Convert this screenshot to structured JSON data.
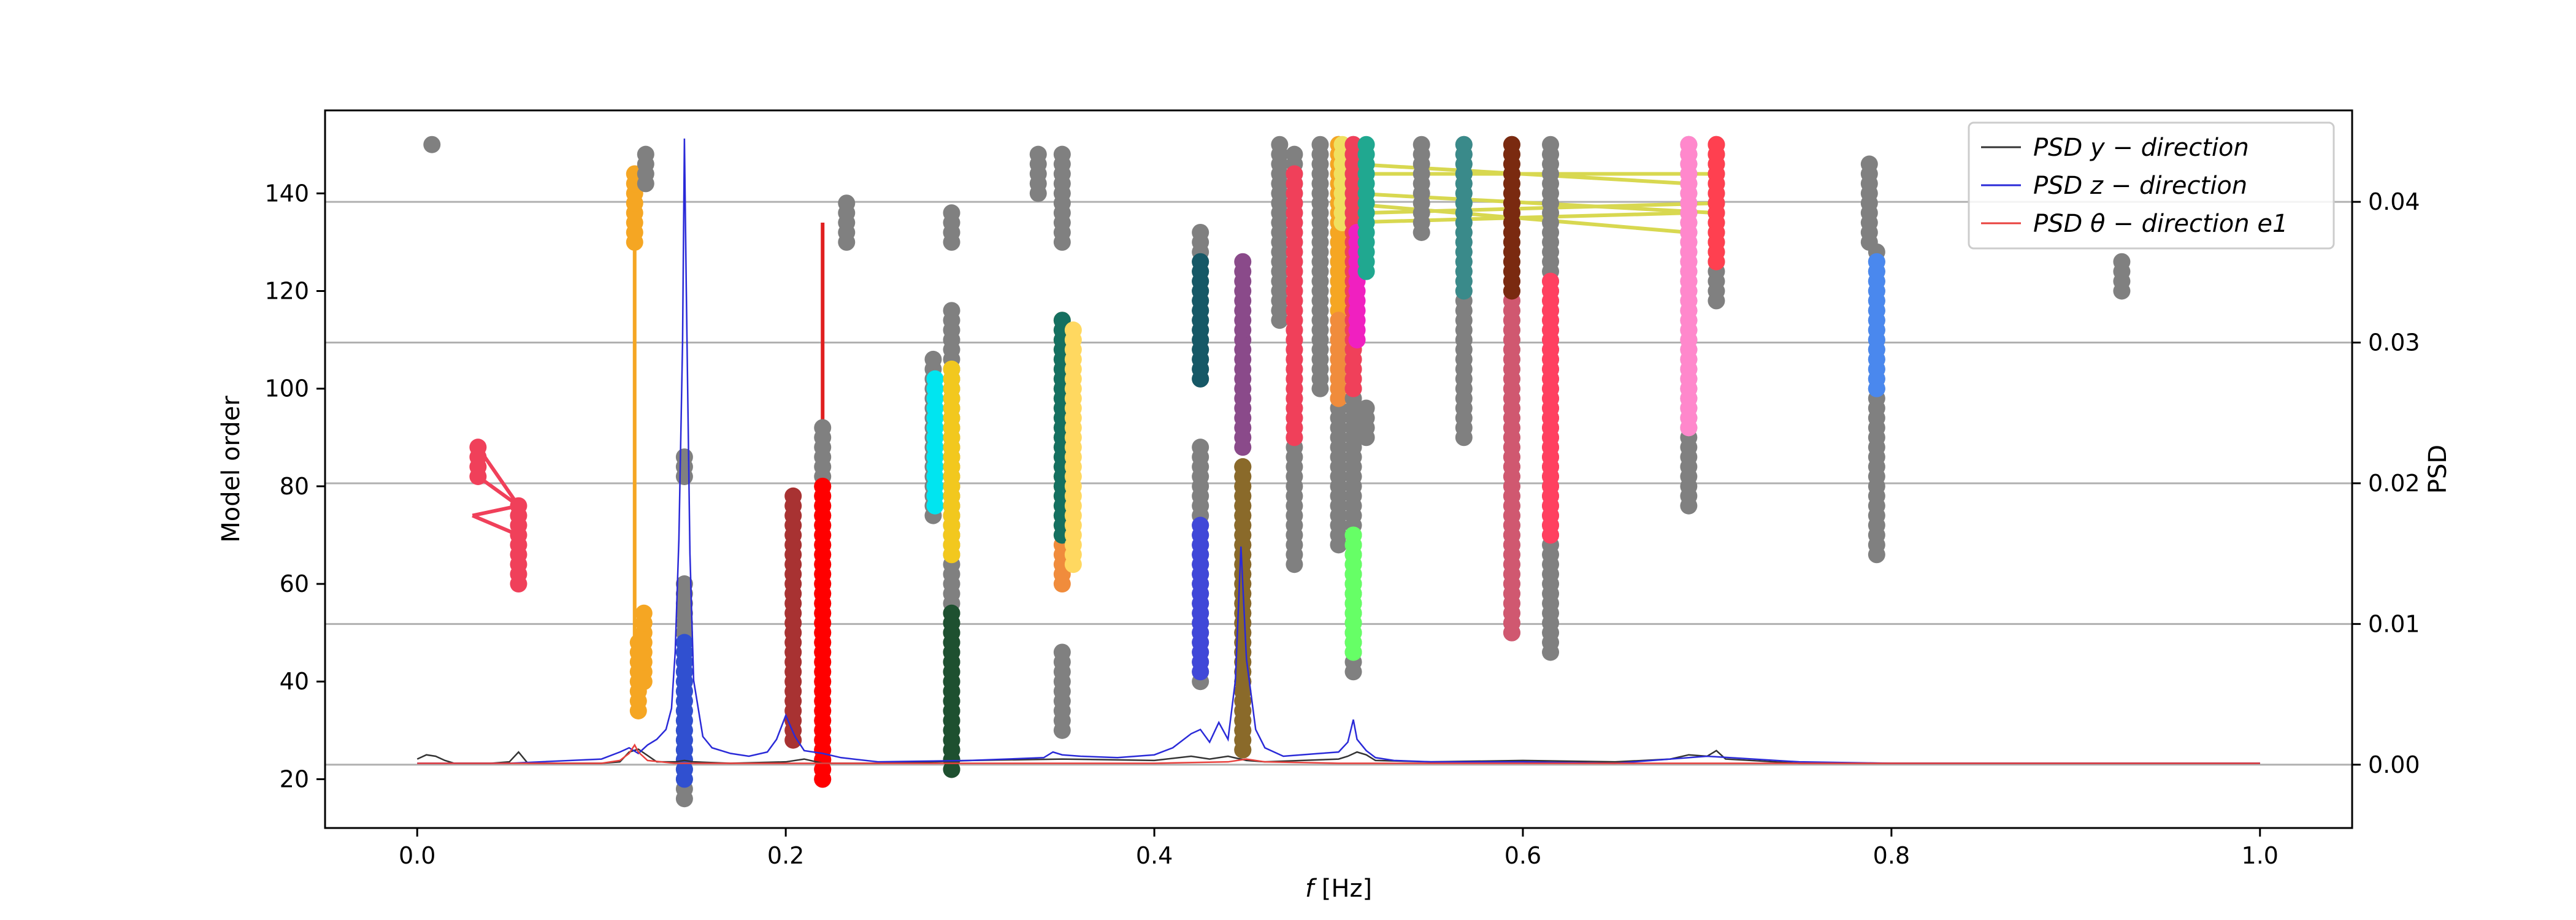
{
  "chart_data": {
    "type": "scatter",
    "xlabel": "f [Hz]",
    "ylabel_left": "Model order",
    "ylabel_right": "PSD",
    "xlim": [
      -0.05,
      1.05
    ],
    "ylim_left": [
      10,
      157
    ],
    "ylim_right": [
      -0.0045,
      0.0465
    ],
    "x_ticks": [
      0.0,
      0.2,
      0.4,
      0.6,
      0.8,
      1.0
    ],
    "x_tick_labels": [
      "0.0",
      "0.2",
      "0.4",
      "0.6",
      "0.8",
      "1.0"
    ],
    "y_left_ticks": [
      20,
      40,
      60,
      80,
      100,
      120,
      140
    ],
    "y_left_tick_labels": [
      "20",
      "40",
      "60",
      "80",
      "100",
      "120",
      "140"
    ],
    "y_right_ticks": [
      0.0,
      0.01,
      0.02,
      0.03,
      0.04
    ],
    "y_right_tick_labels": [
      "0.00",
      "0.01",
      "0.02",
      "0.03",
      "0.04"
    ],
    "grid": "horizontal lines at right-axis ticks",
    "legend_position": "top-right",
    "legend": [
      {
        "label": "PSD y − direction",
        "color": "#333333"
      },
      {
        "label": "PSD z − direction",
        "color": "#2a2ad8"
      },
      {
        "label": "PSD θ − direction e1",
        "color": "#e8413d"
      }
    ],
    "stability_columns": [
      {
        "x": 0.008,
        "y0": 150,
        "y1": 150,
        "color": "#808080"
      },
      {
        "x": 0.055,
        "y0": 60,
        "y1": 76,
        "color": "#f0405a"
      },
      {
        "x": 0.033,
        "y0": 82,
        "y1": 88,
        "color": "#f0405a"
      },
      {
        "x": 0.12,
        "y0": 34,
        "y1": 48,
        "color": "#f5a623"
      },
      {
        "x": 0.118,
        "y0": 130,
        "y1": 144,
        "color": "#f5a623"
      },
      {
        "x": 0.123,
        "y0": 40,
        "y1": 54,
        "color": "#f5a623"
      },
      {
        "x": 0.124,
        "y0": 142,
        "y1": 148,
        "color": "#808080"
      },
      {
        "x": 0.145,
        "y0": 16,
        "y1": 60,
        "color": "#808080"
      },
      {
        "x": 0.145,
        "y0": 82,
        "y1": 86,
        "color": "#808080"
      },
      {
        "x": 0.145,
        "y0": 20,
        "y1": 48,
        "color": "#3050d0"
      },
      {
        "x": 0.204,
        "y0": 28,
        "y1": 78,
        "color": "#a83232"
      },
      {
        "x": 0.22,
        "y0": 20,
        "y1": 92,
        "color": "#808080"
      },
      {
        "x": 0.22,
        "y0": 20,
        "y1": 80,
        "color": "#ff0000"
      },
      {
        "x": 0.233,
        "y0": 130,
        "y1": 138,
        "color": "#808080"
      },
      {
        "x": 0.28,
        "y0": 74,
        "y1": 106,
        "color": "#808080"
      },
      {
        "x": 0.281,
        "y0": 76,
        "y1": 102,
        "color": "#00e5f0"
      },
      {
        "x": 0.29,
        "y0": 22,
        "y1": 116,
        "color": "#808080"
      },
      {
        "x": 0.29,
        "y0": 22,
        "y1": 54,
        "color": "#1e5030"
      },
      {
        "x": 0.29,
        "y0": 66,
        "y1": 104,
        "color": "#f2c81e"
      },
      {
        "x": 0.29,
        "y0": 130,
        "y1": 136,
        "color": "#808080"
      },
      {
        "x": 0.337,
        "y0": 140,
        "y1": 148,
        "color": "#808080"
      },
      {
        "x": 0.35,
        "y0": 30,
        "y1": 46,
        "color": "#808080"
      },
      {
        "x": 0.35,
        "y0": 60,
        "y1": 114,
        "color": "#f08c3c"
      },
      {
        "x": 0.35,
        "y0": 70,
        "y1": 114,
        "color": "#157060"
      },
      {
        "x": 0.35,
        "y0": 130,
        "y1": 148,
        "color": "#808080"
      },
      {
        "x": 0.356,
        "y0": 64,
        "y1": 112,
        "color": "#ffd860"
      },
      {
        "x": 0.425,
        "y0": 40,
        "y1": 88,
        "color": "#808080"
      },
      {
        "x": 0.425,
        "y0": 42,
        "y1": 72,
        "color": "#4048d8"
      },
      {
        "x": 0.425,
        "y0": 102,
        "y1": 132,
        "color": "#808080"
      },
      {
        "x": 0.425,
        "y0": 102,
        "y1": 126,
        "color": "#165866"
      },
      {
        "x": 0.448,
        "y0": 26,
        "y1": 84,
        "color": "#808080"
      },
      {
        "x": 0.448,
        "y0": 26,
        "y1": 84,
        "color": "#8a6a2a"
      },
      {
        "x": 0.448,
        "y0": 88,
        "y1": 126,
        "color": "#8a4a8a"
      },
      {
        "x": 0.468,
        "y0": 114,
        "y1": 150,
        "color": "#808080"
      },
      {
        "x": 0.476,
        "y0": 64,
        "y1": 148,
        "color": "#808080"
      },
      {
        "x": 0.476,
        "y0": 90,
        "y1": 144,
        "color": "#f0405a"
      },
      {
        "x": 0.49,
        "y0": 100,
        "y1": 150,
        "color": "#808080"
      },
      {
        "x": 0.5,
        "y0": 68,
        "y1": 150,
        "color": "#808080"
      },
      {
        "x": 0.5,
        "y0": 98,
        "y1": 150,
        "color": "#f5a623"
      },
      {
        "x": 0.5,
        "y0": 98,
        "y1": 114,
        "color": "#f08c3c"
      },
      {
        "x": 0.502,
        "y0": 134,
        "y1": 150,
        "color": "#f0e060"
      },
      {
        "x": 0.508,
        "y0": 42,
        "y1": 150,
        "color": "#808080"
      },
      {
        "x": 0.508,
        "y0": 46,
        "y1": 70,
        "color": "#66ff66"
      },
      {
        "x": 0.508,
        "y0": 100,
        "y1": 150,
        "color": "#f0405a"
      },
      {
        "x": 0.51,
        "y0": 110,
        "y1": 132,
        "color": "#f020c0"
      },
      {
        "x": 0.515,
        "y0": 90,
        "y1": 96,
        "color": "#808080"
      },
      {
        "x": 0.515,
        "y0": 124,
        "y1": 150,
        "color": "#20a890"
      },
      {
        "x": 0.545,
        "y0": 132,
        "y1": 150,
        "color": "#808080"
      },
      {
        "x": 0.568,
        "y0": 90,
        "y1": 150,
        "color": "#808080"
      },
      {
        "x": 0.568,
        "y0": 120,
        "y1": 150,
        "color": "#3a8a8a"
      },
      {
        "x": 0.594,
        "y0": 50,
        "y1": 150,
        "color": "#808080"
      },
      {
        "x": 0.594,
        "y0": 50,
        "y1": 122,
        "color": "#d05870"
      },
      {
        "x": 0.594,
        "y0": 120,
        "y1": 150,
        "color": "#7a2a10"
      },
      {
        "x": 0.615,
        "y0": 46,
        "y1": 150,
        "color": "#808080"
      },
      {
        "x": 0.615,
        "y0": 70,
        "y1": 122,
        "color": "#ff4060"
      },
      {
        "x": 0.69,
        "y0": 76,
        "y1": 150,
        "color": "#808080"
      },
      {
        "x": 0.69,
        "y0": 92,
        "y1": 150,
        "color": "#ff88cc"
      },
      {
        "x": 0.705,
        "y0": 118,
        "y1": 150,
        "color": "#808080"
      },
      {
        "x": 0.705,
        "y0": 126,
        "y1": 150,
        "color": "#ff4050"
      },
      {
        "x": 0.788,
        "y0": 130,
        "y1": 146,
        "color": "#808080"
      },
      {
        "x": 0.792,
        "y0": 66,
        "y1": 128,
        "color": "#808080"
      },
      {
        "x": 0.792,
        "y0": 100,
        "y1": 126,
        "color": "#4a88ee"
      },
      {
        "x": 0.925,
        "y0": 120,
        "y1": 126,
        "color": "#808080"
      }
    ],
    "stable_pole_links": [
      {
        "points": [
          [
            0.033,
            88
          ],
          [
            0.055,
            76
          ]
        ],
        "color": "#f0405a"
      },
      {
        "points": [
          [
            0.033,
            82
          ],
          [
            0.055,
            76
          ]
        ],
        "color": "#f0405a"
      },
      {
        "points": [
          [
            0.03,
            74
          ],
          [
            0.055,
            76
          ]
        ],
        "color": "#f0405a"
      },
      {
        "points": [
          [
            0.03,
            74
          ],
          [
            0.055,
            70
          ]
        ],
        "color": "#f0405a"
      },
      {
        "points": [
          [
            0.118,
            144
          ],
          [
            0.118,
            130
          ]
        ],
        "color": "#f5a623"
      },
      {
        "points": [
          [
            0.118,
            130
          ],
          [
            0.118,
            48
          ]
        ],
        "color": "#f5a623"
      },
      {
        "points": [
          [
            0.118,
            48
          ],
          [
            0.123,
            40
          ]
        ],
        "color": "#f5a623"
      },
      {
        "points": [
          [
            0.123,
            54
          ],
          [
            0.118,
            40
          ]
        ],
        "color": "#f5a623"
      },
      {
        "points": [
          [
            0.204,
            78
          ],
          [
            0.204,
            28
          ]
        ],
        "color": "#a83232"
      },
      {
        "points": [
          [
            0.22,
            134
          ],
          [
            0.22,
            20
          ]
        ],
        "color": "#e02020"
      },
      {
        "points": [
          [
            0.502,
            134
          ],
          [
            0.69,
            136
          ]
        ],
        "color": "#d8d850"
      },
      {
        "points": [
          [
            0.502,
            138
          ],
          [
            0.69,
            132
          ]
        ],
        "color": "#d8d850"
      },
      {
        "points": [
          [
            0.508,
            144
          ],
          [
            0.705,
            144
          ]
        ],
        "color": "#d8d850"
      },
      {
        "points": [
          [
            0.508,
            146
          ],
          [
            0.69,
            142
          ]
        ],
        "color": "#d8d850"
      },
      {
        "points": [
          [
            0.508,
            140
          ],
          [
            0.705,
            136
          ]
        ],
        "color": "#d8d850"
      },
      {
        "points": [
          [
            0.515,
            136
          ],
          [
            0.705,
            138
          ]
        ],
        "color": "#d8d850"
      }
    ],
    "series": [
      {
        "name": "PSD y − direction",
        "color": "#333333",
        "x": [
          0.0,
          0.005,
          0.01,
          0.015,
          0.02,
          0.04,
          0.05,
          0.055,
          0.06,
          0.08,
          0.1,
          0.11,
          0.115,
          0.12,
          0.13,
          0.14,
          0.145,
          0.15,
          0.17,
          0.2,
          0.21,
          0.22,
          0.25,
          0.28,
          0.3,
          0.35,
          0.4,
          0.42,
          0.43,
          0.44,
          0.45,
          0.46,
          0.5,
          0.505,
          0.51,
          0.515,
          0.52,
          0.55,
          0.6,
          0.65,
          0.68,
          0.69,
          0.7,
          0.705,
          0.71,
          0.75,
          0.8,
          0.85,
          0.9,
          0.95,
          1.0
        ],
        "y": [
          0.0004,
          0.0007,
          0.0006,
          0.0003,
          0.0001,
          0.0001,
          0.0002,
          0.0009,
          0.0001,
          0.0001,
          0.0001,
          0.0002,
          0.0009,
          0.0011,
          0.0002,
          0.0002,
          0.0003,
          0.0002,
          0.0001,
          0.0002,
          0.0004,
          0.0001,
          0.0001,
          0.0002,
          0.0003,
          0.0004,
          0.0003,
          0.0006,
          0.0004,
          0.0006,
          0.0003,
          0.0002,
          0.0004,
          0.0006,
          0.0009,
          0.0007,
          0.0003,
          0.0002,
          0.0003,
          0.0002,
          0.0004,
          0.0007,
          0.0006,
          0.001,
          0.0004,
          0.0001,
          0.0001,
          0.0001,
          0.0001,
          0.0001,
          0.0001
        ]
      },
      {
        "name": "PSD z − direction",
        "color": "#2a2ad8",
        "x": [
          0.0,
          0.05,
          0.1,
          0.11,
          0.115,
          0.12,
          0.125,
          0.13,
          0.135,
          0.138,
          0.14,
          0.142,
          0.144,
          0.145,
          0.146,
          0.148,
          0.15,
          0.155,
          0.16,
          0.17,
          0.18,
          0.19,
          0.195,
          0.2,
          0.205,
          0.21,
          0.22,
          0.23,
          0.25,
          0.3,
          0.34,
          0.345,
          0.35,
          0.36,
          0.38,
          0.4,
          0.41,
          0.42,
          0.425,
          0.43,
          0.435,
          0.44,
          0.444,
          0.447,
          0.45,
          0.455,
          0.46,
          0.47,
          0.49,
          0.5,
          0.505,
          0.508,
          0.51,
          0.515,
          0.52,
          0.53,
          0.55,
          0.6,
          0.65,
          0.7,
          0.75,
          0.8,
          0.9,
          1.0
        ],
        "y": [
          0.0001,
          0.0001,
          0.0004,
          0.0009,
          0.0012,
          0.0008,
          0.0014,
          0.0018,
          0.0025,
          0.004,
          0.008,
          0.016,
          0.03,
          0.0445,
          0.034,
          0.015,
          0.006,
          0.002,
          0.0012,
          0.0008,
          0.0006,
          0.0009,
          0.0018,
          0.0035,
          0.002,
          0.001,
          0.0008,
          0.0005,
          0.0002,
          0.0003,
          0.0005,
          0.0009,
          0.0007,
          0.0006,
          0.0005,
          0.0007,
          0.0012,
          0.0022,
          0.0025,
          0.0016,
          0.003,
          0.0018,
          0.006,
          0.0155,
          0.0075,
          0.0025,
          0.0012,
          0.0006,
          0.0008,
          0.0009,
          0.0016,
          0.0032,
          0.0018,
          0.001,
          0.0005,
          0.0003,
          0.0002,
          0.0002,
          0.0001,
          0.0006,
          0.0002,
          0.0001,
          0.0001,
          0.0001
        ]
      },
      {
        "name": "PSD θ − direction e1",
        "color": "#e8413d",
        "x": [
          0.0,
          0.1,
          0.11,
          0.115,
          0.118,
          0.12,
          0.125,
          0.14,
          0.2,
          0.3,
          0.4,
          0.44,
          0.45,
          0.46,
          0.5,
          0.6,
          0.7,
          0.8,
          0.9,
          1.0
        ],
        "y": [
          0.0001,
          0.0001,
          0.0003,
          0.0008,
          0.0014,
          0.0009,
          0.0003,
          0.0001,
          0.0001,
          0.0001,
          0.0001,
          0.0002,
          0.0004,
          0.0002,
          0.0001,
          0.0001,
          0.0001,
          0.0001,
          0.0001,
          0.0001
        ]
      }
    ]
  }
}
